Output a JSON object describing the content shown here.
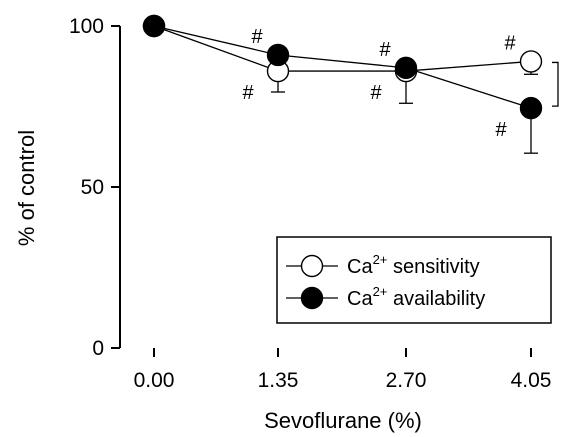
{
  "chart_data": {
    "type": "line",
    "title": "",
    "xlabel": "Sevoflurane (%)",
    "ylabel": "% of control",
    "x": [
      0.0,
      1.35,
      2.7,
      4.05
    ],
    "x_tick_labels": [
      "0.00",
      "1.35",
      "2.70",
      "4.05"
    ],
    "ylim": [
      0,
      100
    ],
    "y_ticks": [
      0,
      50,
      100
    ],
    "y_tick_labels": [
      "0",
      "50",
      "100"
    ],
    "grid": false,
    "legend_position": "bottom-right",
    "series": [
      {
        "name_base": "Ca",
        "name_sup": "2+",
        "name_rest": " sensitivity",
        "marker": "open-circle",
        "y": [
          100,
          86,
          86,
          89
        ],
        "error": [
          0,
          6.5,
          10,
          4
        ],
        "error_direction": "down",
        "significance": [
          "",
          "#",
          "#",
          "#"
        ],
        "significance_position": [
          "",
          "below",
          "below",
          "above"
        ]
      },
      {
        "name_base": "Ca",
        "name_sup": "2+",
        "name_rest": " availability",
        "marker": "filled-circle",
        "y": [
          100,
          91,
          87,
          74.5
        ],
        "error": [
          0,
          1.5,
          0,
          14
        ],
        "error_direction": "down",
        "significance": [
          "",
          "#",
          "#",
          "#"
        ],
        "significance_position": [
          "",
          "above",
          "above",
          "below"
        ]
      }
    ],
    "bracket_between_series_at_x": 4.05
  }
}
